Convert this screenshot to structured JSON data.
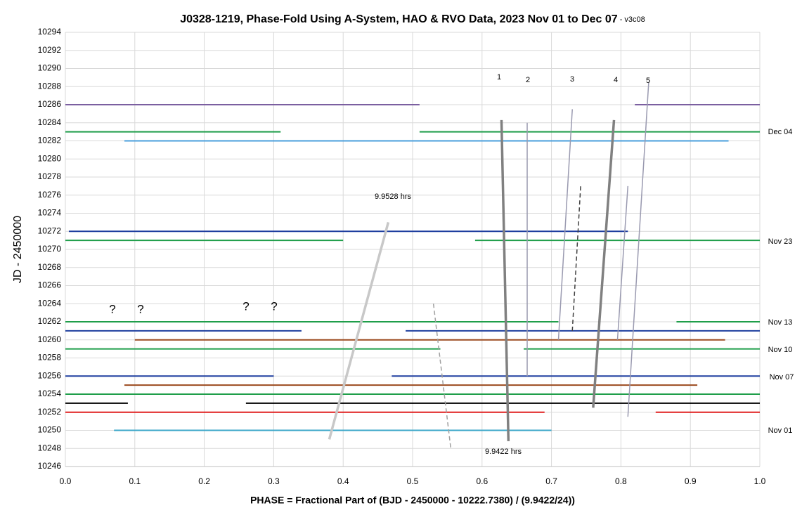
{
  "chart_data": {
    "type": "line",
    "title": "J0328-1219, Phase-Fold Using A-System, HAO & RVO Data, 2023 Nov 01 to Dec 07",
    "subtitle": " - v3c08",
    "x_label": "PHASE = Fractional Part of (BJD - 2450000 - 10222.7380) / (9.9422/24))",
    "y_label": "JD - 2450000",
    "xlim": [
      0,
      1
    ],
    "ylim": [
      10246,
      10294
    ],
    "xticks": [
      {
        "value": 0,
        "label": "0.0"
      },
      0.1,
      0.2,
      0.3,
      0.4,
      0.5,
      0.6,
      0.7,
      0.8,
      0.9,
      {
        "value": 1,
        "label": "1.0"
      }
    ],
    "yticks": [
      10246,
      10248,
      10250,
      10252,
      10254,
      10256,
      10258,
      10260,
      10262,
      10264,
      10266,
      10268,
      10270,
      10272,
      10274,
      10276,
      10278,
      10280,
      10282,
      10284,
      10286,
      10288,
      10290,
      10292,
      10294
    ],
    "grid": true,
    "series": [
      {
        "color": "#7b5fa0",
        "x": [
          0,
          0.51,
          null,
          0.82,
          1.0
        ],
        "values": [
          10286,
          10286,
          null,
          10286,
          10286
        ]
      },
      {
        "color": "#1f9e4a",
        "x": [
          0,
          0.31,
          null,
          0.51,
          1.0
        ],
        "values": [
          10283,
          10283,
          null,
          10283,
          10283
        ]
      },
      {
        "color": "#4a9fdc",
        "x": [
          0.085,
          0.955
        ],
        "values": [
          10282,
          10282
        ]
      },
      {
        "color": "#1f3f9f",
        "x": [
          0.005,
          0.81
        ],
        "values": [
          10272,
          10272
        ]
      },
      {
        "color": "#1f9e4a",
        "x": [
          0,
          0.4,
          null,
          0.59,
          1.0
        ],
        "values": [
          10271,
          10271,
          null,
          10271,
          10271
        ]
      },
      {
        "color": "#1f9e4a",
        "x": [
          0,
          0.71,
          null,
          0.88,
          1.0
        ],
        "values": [
          10262,
          10262,
          null,
          10262,
          10262
        ]
      },
      {
        "color": "#1f3f9f",
        "x": [
          0,
          0.34,
          null,
          0.49,
          1.0
        ],
        "values": [
          10261,
          10261,
          null,
          10261,
          10261
        ]
      },
      {
        "color": "#9b4a1e",
        "x": [
          0.1,
          0.95
        ],
        "values": [
          10260,
          10260
        ]
      },
      {
        "color": "#1f9e4a",
        "x": [
          0,
          0.54,
          null,
          0.66,
          1.0
        ],
        "values": [
          10259,
          10259,
          null,
          10259,
          10259
        ]
      },
      {
        "color": "#1f3f9f",
        "x": [
          0,
          0.3,
          null,
          0.47,
          1.0
        ],
        "values": [
          10256,
          10256,
          null,
          10256,
          10256
        ]
      },
      {
        "color": "#9b4a1e",
        "x": [
          0.085,
          0.91
        ],
        "values": [
          10255,
          10255
        ]
      },
      {
        "color": "#1f9e4a",
        "x": [
          0,
          1.0
        ],
        "values": [
          10254,
          10254
        ]
      },
      {
        "color": "#000000",
        "x": [
          0,
          0.09,
          null,
          0.26,
          1.0
        ],
        "values": [
          10253,
          10253,
          null,
          10253,
          10253
        ]
      },
      {
        "color": "#e01f1f",
        "x": [
          0,
          0.69,
          null,
          0.85,
          1.0
        ],
        "values": [
          10252,
          10252,
          null,
          10252,
          10252
        ]
      },
      {
        "color": "#3ba7c9",
        "x": [
          0.07,
          0.7
        ],
        "values": [
          10250,
          10250
        ]
      }
    ],
    "lines": [
      {
        "color": "#c8c8c8",
        "weight": "heavy",
        "dash": false,
        "x": [
          0.38,
          0.465
        ],
        "values": [
          10249,
          10273
        ]
      },
      {
        "color": "#808080",
        "weight": "heavy",
        "dash": false,
        "x": [
          0.638,
          0.628
        ],
        "values": [
          10248.8,
          10284.3
        ]
      },
      {
        "color": "#9a9ab0",
        "weight": "light",
        "dash": false,
        "x": [
          0.665,
          0.665
        ],
        "values": [
          10256,
          10284
        ]
      },
      {
        "color": "#9a9ab0",
        "weight": "light",
        "dash": false,
        "x": [
          0.71,
          0.73
        ],
        "values": [
          10260,
          10285.5
        ]
      },
      {
        "color": "#404040",
        "weight": "light",
        "dash": true,
        "x": [
          0.73,
          0.742
        ],
        "values": [
          10261,
          10277
        ]
      },
      {
        "color": "#808080",
        "weight": "heavy",
        "dash": false,
        "x": [
          0.76,
          0.79
        ],
        "values": [
          10252.5,
          10284.3
        ]
      },
      {
        "color": "#9a9ab0",
        "weight": "light",
        "dash": false,
        "x": [
          0.795,
          0.81
        ],
        "values": [
          10260,
          10277
        ]
      },
      {
        "color": "#9a9ab0",
        "weight": "light",
        "dash": false,
        "x": [
          0.81,
          0.84
        ],
        "values": [
          10251.5,
          10288.5
        ]
      },
      {
        "color": "#a0a0a0",
        "weight": "light",
        "dash": true,
        "x": [
          0.53,
          0.555
        ],
        "values": [
          10264,
          10248
        ]
      }
    ],
    "annotations": [
      "1",
      "2",
      "3",
      "4",
      "5",
      "9.9528 hrs",
      "9.9422 hrs",
      "?",
      "?",
      "?",
      "?",
      "Dec 04",
      "Nov 23",
      "Nov 13",
      "Nov 10",
      "Nov 07",
      "Nov 01"
    ]
  }
}
